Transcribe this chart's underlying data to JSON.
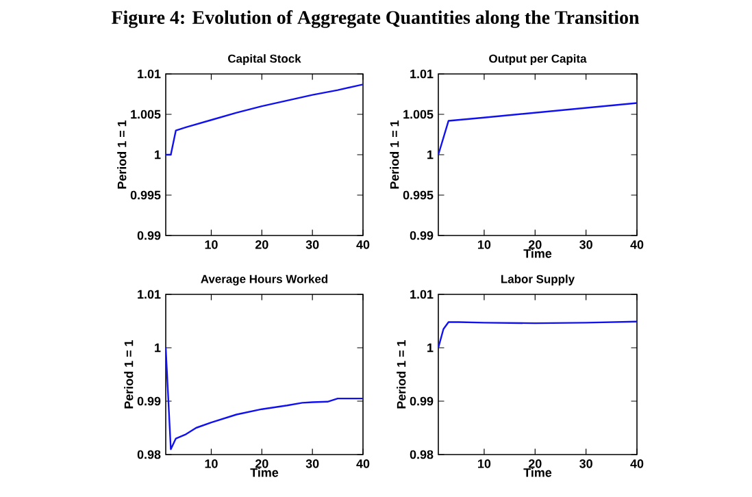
{
  "chart_data": [
    {
      "type": "line",
      "title": "Capital Stock",
      "ylabel": "Period 1 = 1",
      "annotations": [
        "Figure 4: Evolution of Aggregate Quantities along the Transition"
      ],
      "xlim": [
        1,
        40
      ],
      "xticks": [
        10,
        20,
        30,
        40
      ],
      "ylim": [
        0.99,
        1.01
      ],
      "yticks": [
        0.99,
        0.995,
        1,
        1.005,
        1.01
      ],
      "series": [
        {
          "color": "#1010f0",
          "x": [
            1,
            2,
            3,
            5,
            10,
            15,
            20,
            25,
            30,
            35,
            40
          ],
          "values": [
            1.0,
            1.0,
            1.003,
            1.0034,
            1.0043,
            1.0052,
            1.006,
            1.0067,
            1.0074,
            1.008,
            1.0087
          ]
        }
      ]
    },
    {
      "type": "line",
      "title": "Output per Capita",
      "xlabel": "Time",
      "ylabel": "Period 1 = 1",
      "xlim": [
        1,
        40
      ],
      "xticks": [
        10,
        20,
        30,
        40
      ],
      "ylim": [
        0.99,
        1.01
      ],
      "yticks": [
        0.99,
        0.995,
        1,
        1.005,
        1.01
      ],
      "series": [
        {
          "color": "#1010f0",
          "x": [
            1,
            3,
            10,
            20,
            30,
            40
          ],
          "values": [
            1.0,
            1.0042,
            1.0046,
            1.0052,
            1.0058,
            1.0064
          ]
        }
      ]
    },
    {
      "type": "line",
      "title": "Average Hours Worked",
      "xlabel": "Time",
      "ylabel": "Period 1 = 1",
      "xlim": [
        1,
        40
      ],
      "xticks": [
        10,
        20,
        30,
        40
      ],
      "ylim": [
        0.98,
        1.01
      ],
      "yticks": [
        0.98,
        0.99,
        1,
        1.01
      ],
      "series": [
        {
          "color": "#1010f0",
          "x": [
            1,
            2,
            3,
            5,
            7,
            10,
            15,
            20,
            25,
            28,
            30,
            33,
            35,
            40
          ],
          "values": [
            1.0,
            0.981,
            0.983,
            0.9838,
            0.985,
            0.986,
            0.9875,
            0.9885,
            0.9892,
            0.9897,
            0.9898,
            0.9899,
            0.9905,
            0.9905
          ]
        }
      ]
    },
    {
      "type": "line",
      "title": "Labor Supply",
      "xlabel": "Time",
      "ylabel": "Period 1 = 1",
      "xlim": [
        1,
        40
      ],
      "xticks": [
        10,
        20,
        30,
        40
      ],
      "ylim": [
        0.98,
        1.01
      ],
      "yticks": [
        0.98,
        0.99,
        1,
        1.01
      ],
      "series": [
        {
          "color": "#1010f0",
          "x": [
            1,
            2,
            3,
            5,
            10,
            20,
            30,
            40
          ],
          "values": [
            1.0,
            1.0035,
            1.0048,
            1.0048,
            1.0047,
            1.0046,
            1.0047,
            1.0049
          ]
        }
      ]
    }
  ]
}
